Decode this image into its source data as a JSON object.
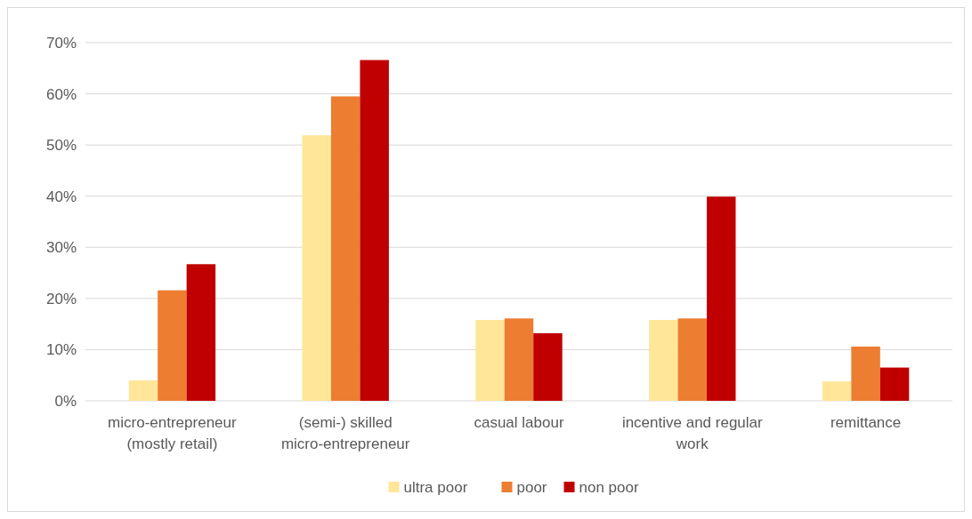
{
  "chart_data": {
    "type": "bar",
    "categories": [
      "micro-entrepreneur (mostly retail)",
      "(semi-) skilled micro-entrepreneur",
      "casual labour",
      "incentive and regular work",
      "remittance"
    ],
    "series": [
      {
        "name": "ultra poor",
        "color": "#ffe699",
        "values": [
          4.0,
          51.9,
          15.8,
          15.8,
          3.8
        ]
      },
      {
        "name": "poor",
        "color": "#ed7d31",
        "values": [
          21.6,
          59.5,
          16.1,
          16.1,
          10.6
        ]
      },
      {
        "name": "non poor",
        "color": "#c00000",
        "values": [
          26.7,
          66.6,
          13.2,
          39.9,
          6.5
        ]
      }
    ],
    "ylim": [
      0,
      70
    ],
    "yticks": [
      {
        "value": 0,
        "label": "0%"
      },
      {
        "value": 10,
        "label": "10%"
      },
      {
        "value": 20,
        "label": "20%"
      },
      {
        "value": 30,
        "label": "30%"
      },
      {
        "value": 40,
        "label": "40%"
      },
      {
        "value": 50,
        "label": "50%"
      },
      {
        "value": 60,
        "label": "60%"
      },
      {
        "value": 70,
        "label": "70%"
      }
    ],
    "grid": "y",
    "legend": "bottom"
  }
}
